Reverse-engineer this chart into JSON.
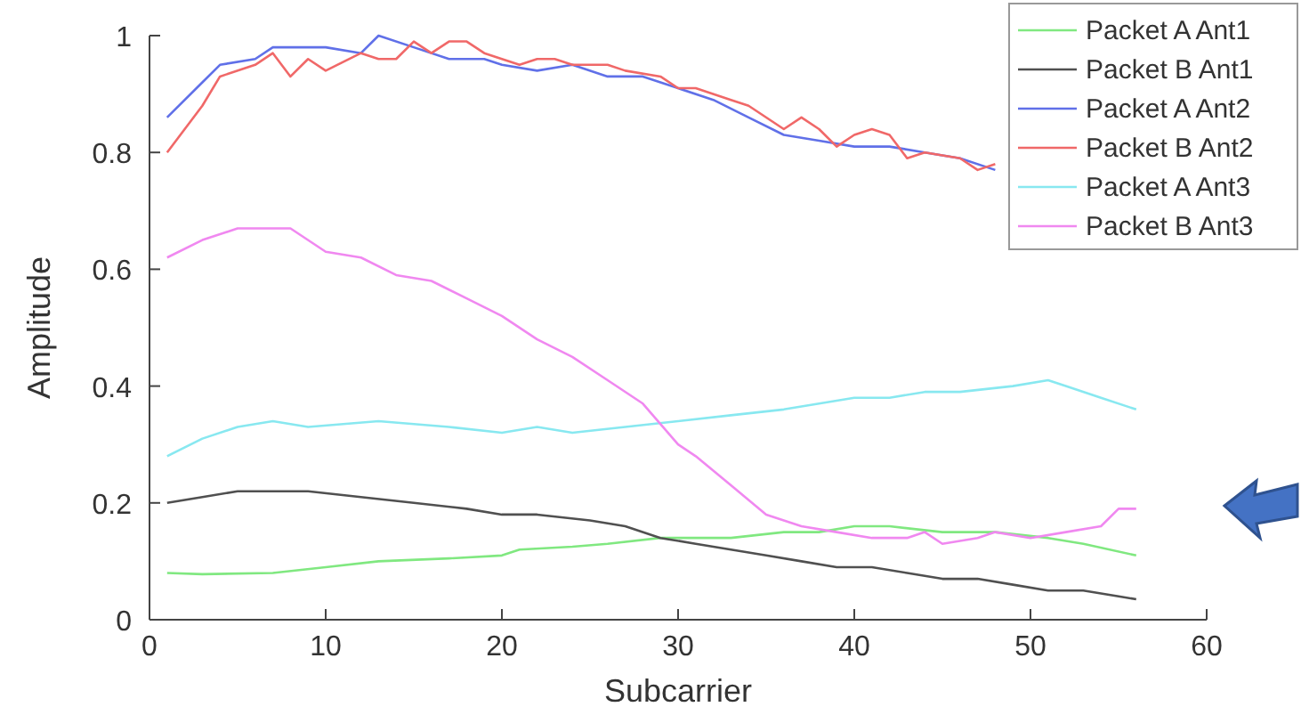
{
  "chart_data": {
    "type": "line",
    "xlabel": "Subcarrier",
    "ylabel": "Amplitude",
    "xlim": [
      0,
      60
    ],
    "ylim": [
      0,
      1
    ],
    "xticks": [
      0,
      10,
      20,
      30,
      40,
      50,
      60
    ],
    "yticks": [
      0,
      0.2,
      0.4,
      0.6,
      0.8,
      1
    ],
    "legend": "top right",
    "grid": false,
    "series": [
      {
        "name": "Packet A Ant1",
        "color": "#80e880",
        "x": [
          1,
          3,
          7,
          10,
          13,
          17,
          20,
          21,
          24,
          26,
          29,
          33,
          36,
          38,
          40,
          42,
          45,
          48,
          51,
          53,
          56
        ],
        "values": [
          0.08,
          0.078,
          0.08,
          0.09,
          0.1,
          0.105,
          0.11,
          0.12,
          0.125,
          0.13,
          0.14,
          0.14,
          0.15,
          0.15,
          0.16,
          0.16,
          0.15,
          0.15,
          0.14,
          0.13,
          0.11
        ]
      },
      {
        "name": "Packet B Ant1",
        "color": "#505050",
        "x": [
          1,
          3,
          5,
          7,
          9,
          12,
          15,
          18,
          20,
          22,
          25,
          27,
          29,
          31,
          33,
          35,
          37,
          39,
          41,
          43,
          45,
          47,
          49,
          51,
          53,
          55,
          56
        ],
        "values": [
          0.2,
          0.21,
          0.22,
          0.22,
          0.22,
          0.21,
          0.2,
          0.19,
          0.18,
          0.18,
          0.17,
          0.16,
          0.14,
          0.13,
          0.12,
          0.11,
          0.1,
          0.09,
          0.09,
          0.08,
          0.07,
          0.07,
          0.06,
          0.05,
          0.05,
          0.04,
          0.035
        ]
      },
      {
        "name": "Packet A Ant2",
        "color": "#6070e8",
        "x": [
          1,
          3,
          4,
          6,
          7,
          9,
          10,
          12,
          13,
          15,
          17,
          19,
          20,
          22,
          24,
          26,
          28,
          30,
          32,
          34,
          36,
          38,
          40,
          42,
          44,
          46,
          48
        ],
        "values": [
          0.86,
          0.92,
          0.95,
          0.96,
          0.98,
          0.98,
          0.98,
          0.97,
          1,
          0.98,
          0.96,
          0.96,
          0.95,
          0.94,
          0.95,
          0.93,
          0.93,
          0.91,
          0.89,
          0.86,
          0.83,
          0.82,
          0.81,
          0.81,
          0.8,
          0.79,
          0.77
        ]
      },
      {
        "name": "Packet B Ant2",
        "color": "#f06868",
        "x": [
          1,
          3,
          4,
          6,
          7,
          8,
          9,
          10,
          12,
          13,
          14,
          15,
          16,
          17,
          18,
          19,
          21,
          22,
          23,
          24,
          26,
          27,
          29,
          30,
          31,
          33,
          34,
          36,
          37,
          38,
          39,
          40,
          41,
          42,
          43,
          44,
          46,
          47,
          48
        ],
        "values": [
          0.8,
          0.88,
          0.93,
          0.95,
          0.97,
          0.93,
          0.96,
          0.94,
          0.97,
          0.96,
          0.96,
          0.99,
          0.97,
          0.99,
          0.99,
          0.97,
          0.95,
          0.96,
          0.96,
          0.95,
          0.95,
          0.94,
          0.93,
          0.91,
          0.91,
          0.89,
          0.88,
          0.84,
          0.86,
          0.84,
          0.81,
          0.83,
          0.84,
          0.83,
          0.79,
          0.8,
          0.79,
          0.77,
          0.78
        ]
      },
      {
        "name": "Packet A Ant3",
        "color": "#88e8f0",
        "x": [
          1,
          3,
          5,
          7,
          9,
          13,
          17,
          20,
          22,
          24,
          27,
          30,
          33,
          36,
          38,
          40,
          42,
          44,
          46,
          49,
          51,
          52,
          54,
          56
        ],
        "values": [
          0.28,
          0.31,
          0.33,
          0.34,
          0.33,
          0.34,
          0.33,
          0.32,
          0.33,
          0.32,
          0.33,
          0.34,
          0.35,
          0.36,
          0.37,
          0.38,
          0.38,
          0.39,
          0.39,
          0.4,
          0.41,
          0.4,
          0.38,
          0.36
        ]
      },
      {
        "name": "Packet B Ant3",
        "color": "#f088f0",
        "x": [
          1,
          3,
          5,
          7,
          8,
          10,
          12,
          14,
          16,
          18,
          20,
          22,
          24,
          26,
          28,
          30,
          31,
          33,
          35,
          37,
          39,
          41,
          43,
          44,
          45,
          47,
          48,
          50,
          52,
          54,
          55,
          56
        ],
        "values": [
          0.62,
          0.65,
          0.67,
          0.67,
          0.67,
          0.63,
          0.62,
          0.59,
          0.58,
          0.55,
          0.52,
          0.48,
          0.45,
          0.41,
          0.37,
          0.3,
          0.28,
          0.23,
          0.18,
          0.16,
          0.15,
          0.14,
          0.14,
          0.15,
          0.13,
          0.14,
          0.15,
          0.14,
          0.15,
          0.16,
          0.19,
          0.19
        ]
      }
    ]
  }
}
